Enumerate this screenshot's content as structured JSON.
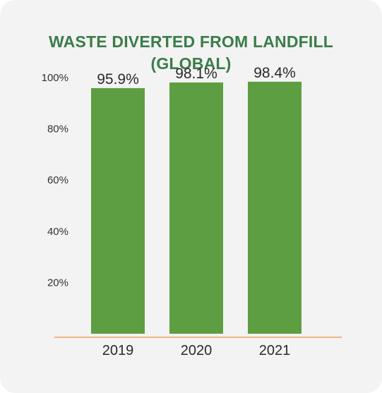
{
  "chart_data": {
    "type": "bar",
    "title_lines": [
      "WASTE DIVERTED FROM LANDFILL",
      "(GLOBAL)"
    ],
    "categories": [
      "2019",
      "2020",
      "2021"
    ],
    "values": [
      95.9,
      98.1,
      98.4
    ],
    "value_labels": [
      "95.9%",
      "98.1%",
      "98.4%"
    ],
    "y_ticks": [
      {
        "value": 20,
        "label": "20%"
      },
      {
        "value": 40,
        "label": "40%"
      },
      {
        "value": 60,
        "label": "60%"
      },
      {
        "value": 80,
        "label": "80%"
      },
      {
        "value": 100,
        "label": "100%"
      }
    ],
    "ylim": [
      0,
      100
    ],
    "grid": false,
    "bar_color": "#5c9e41",
    "axis_color": "#f0a05a",
    "title_color": "#3a7d4a"
  }
}
